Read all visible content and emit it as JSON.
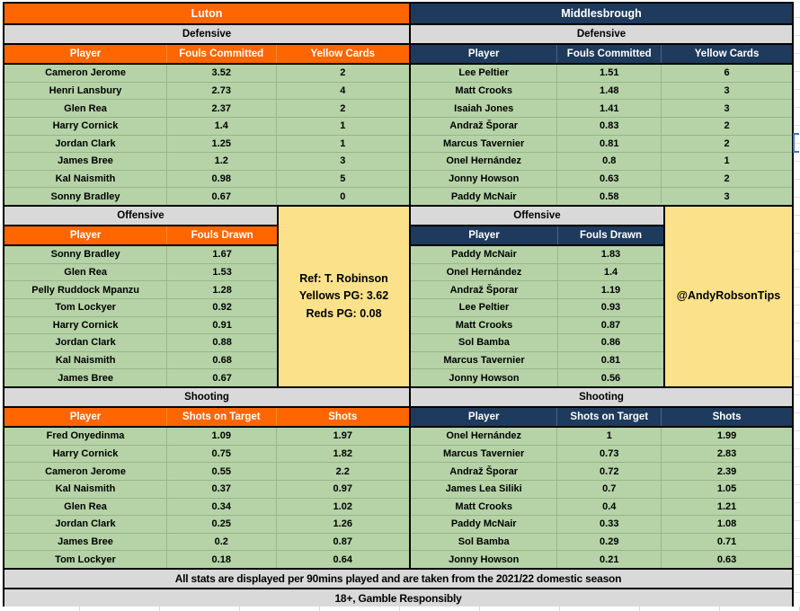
{
  "teams": [
    {
      "name": "Luton"
    },
    {
      "name": "Middlesbrough"
    }
  ],
  "section_labels": {
    "defensive": "Defensive",
    "offensive": "Offensive",
    "shooting": "Shooting"
  },
  "chart_data": [
    {
      "type": "table",
      "team": "Luton",
      "section": "Defensive",
      "columns": [
        "Player",
        "Fouls Committed",
        "Yellow Cards"
      ],
      "rows": [
        [
          "Cameron Jerome",
          3.52,
          2
        ],
        [
          "Henri Lansbury",
          2.73,
          4
        ],
        [
          "Glen Rea",
          2.37,
          2
        ],
        [
          "Harry Cornick",
          1.4,
          1
        ],
        [
          "Jordan Clark",
          1.25,
          1
        ],
        [
          "James Bree",
          1.2,
          3
        ],
        [
          "Kal Naismith",
          0.98,
          5
        ],
        [
          "Sonny Bradley",
          0.67,
          0
        ]
      ]
    },
    {
      "type": "table",
      "team": "Luton",
      "section": "Offensive",
      "columns": [
        "Player",
        "Fouls Drawn"
      ],
      "rows": [
        [
          "Sonny Bradley",
          1.67
        ],
        [
          "Glen Rea",
          1.53
        ],
        [
          "Pelly Ruddock Mpanzu",
          1.28
        ],
        [
          "Tom Lockyer",
          0.92
        ],
        [
          "Harry Cornick",
          0.91
        ],
        [
          "Jordan Clark",
          0.88
        ],
        [
          "Kal Naismith",
          0.68
        ],
        [
          "James Bree",
          0.67
        ]
      ]
    },
    {
      "type": "table",
      "team": "Luton",
      "section": "Shooting",
      "columns": [
        "Player",
        "Shots on Target",
        "Shots"
      ],
      "rows": [
        [
          "Fred Onyedinma",
          1.09,
          1.97
        ],
        [
          "Harry Cornick",
          0.75,
          1.82
        ],
        [
          "Cameron Jerome",
          0.55,
          2.2
        ],
        [
          "Kal Naismith",
          0.37,
          0.97
        ],
        [
          "Glen Rea",
          0.34,
          1.02
        ],
        [
          "Jordan Clark",
          0.25,
          1.26
        ],
        [
          "James Bree",
          0.2,
          0.87
        ],
        [
          "Tom Lockyer",
          0.18,
          0.64
        ]
      ]
    },
    {
      "type": "table",
      "team": "Middlesbrough",
      "section": "Defensive",
      "columns": [
        "Player",
        "Fouls Committed",
        "Yellow Cards"
      ],
      "rows": [
        [
          "Lee Peltier",
          1.51,
          6
        ],
        [
          "Matt Crooks",
          1.48,
          3
        ],
        [
          "Isaiah Jones",
          1.41,
          3
        ],
        [
          "Andraž Šporar",
          0.83,
          2
        ],
        [
          "Marcus Tavernier",
          0.81,
          2
        ],
        [
          "Onel Hernández",
          0.8,
          1
        ],
        [
          "Jonny Howson",
          0.63,
          2
        ],
        [
          "Paddy McNair",
          0.58,
          3
        ]
      ]
    },
    {
      "type": "table",
      "team": "Middlesbrough",
      "section": "Offensive",
      "columns": [
        "Player",
        "Fouls Drawn"
      ],
      "rows": [
        [
          "Paddy McNair",
          1.83
        ],
        [
          "Onel Hernández",
          1.4
        ],
        [
          "Andraž Šporar",
          1.19
        ],
        [
          "Lee Peltier",
          0.93
        ],
        [
          "Matt Crooks",
          0.87
        ],
        [
          "Sol Bamba",
          0.86
        ],
        [
          "Marcus Tavernier",
          0.81
        ],
        [
          "Jonny Howson",
          0.56
        ]
      ]
    },
    {
      "type": "table",
      "team": "Middlesbrough",
      "section": "Shooting",
      "columns": [
        "Player",
        "Shots on Target",
        "Shots"
      ],
      "rows": [
        [
          "Onel Hernández",
          1,
          1.99
        ],
        [
          "Marcus Tavernier",
          0.73,
          2.83
        ],
        [
          "Andraž Šporar",
          0.72,
          2.39
        ],
        [
          "James Lea Siliki",
          0.7,
          1.05
        ],
        [
          "Matt Crooks",
          0.4,
          1.21
        ],
        [
          "Paddy McNair",
          0.33,
          1.08
        ],
        [
          "Sol Bamba",
          0.29,
          0.71
        ],
        [
          "Jonny Howson",
          0.21,
          0.63
        ]
      ]
    }
  ],
  "ref_box": {
    "line1": "Ref: T. Robinson",
    "line2": "Yellows PG: 3.62",
    "line3": "Reds PG: 0.08"
  },
  "handle_box": {
    "text": "@AndyRobsonTips"
  },
  "footer": {
    "stats_note": "All stats are displayed per 90mins played and are taken from the 2021/22 domestic season",
    "age_note": "18+, Gamble Responsibly"
  },
  "colors": {
    "luton-accent": "#FF6600",
    "boro-accent": "#1E3A5C",
    "section-bg": "#D9D9D9",
    "row-bg": "#B5D3A7",
    "note-bg": "#FBE18A",
    "selection-blue": "#4472C4"
  }
}
